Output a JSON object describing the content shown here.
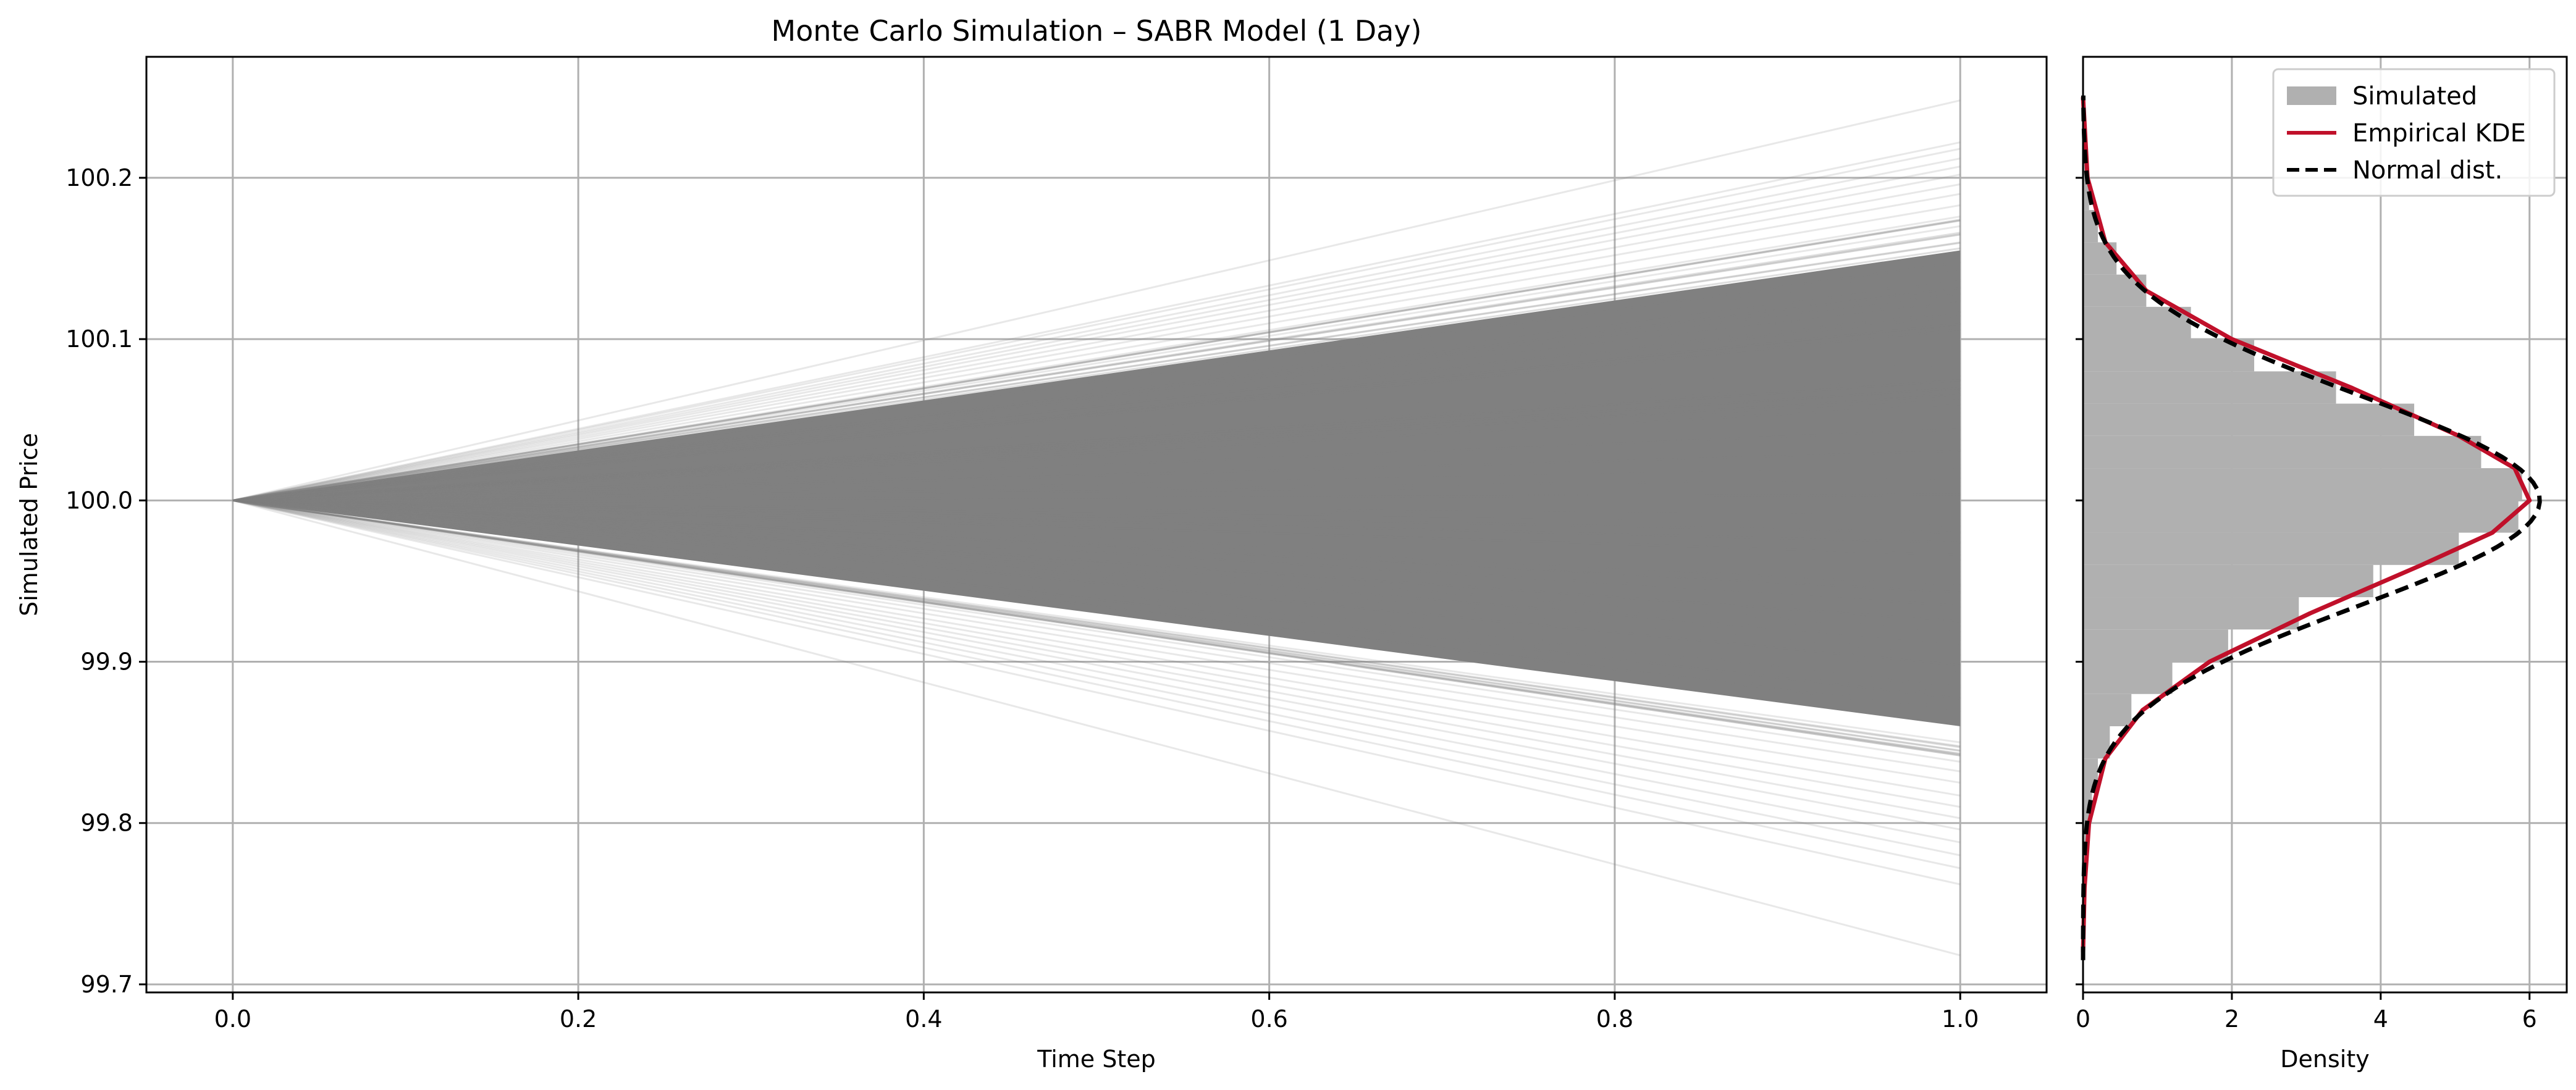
{
  "chart_data": [
    {
      "type": "line",
      "title": "Monte Carlo Simulation – SABR Model (1 Day)",
      "xlabel": "Time Step",
      "ylabel": "Simulated Price",
      "xlim": [
        -0.05,
        1.05
      ],
      "ylim": [
        99.695,
        100.275
      ],
      "xticks": [
        0.0,
        0.2,
        0.4,
        0.6,
        0.8,
        1.0
      ],
      "yticks": [
        99.7,
        99.8,
        99.9,
        100.0,
        100.1,
        100.2
      ],
      "grid": true,
      "line_color": "#808080",
      "start": {
        "x": 0.0,
        "y": 100.0
      },
      "end_x": 1.0,
      "end_values_dense_range": [
        99.86,
        100.155
      ],
      "end_values_outliers": [
        100.248,
        100.222,
        100.218,
        100.212,
        100.207,
        100.202,
        100.196,
        100.19,
        100.183,
        100.176,
        100.17,
        100.165,
        100.16,
        99.85,
        99.845,
        99.838,
        99.832,
        99.825,
        99.817,
        99.81,
        99.803,
        99.796,
        99.788,
        99.78,
        99.772,
        99.762,
        99.718
      ]
    },
    {
      "type": "histogram",
      "orientation": "horizontal",
      "xlabel": "Density",
      "ylabel": "",
      "xlim": [
        0,
        6.5
      ],
      "ylim": [
        99.695,
        100.275
      ],
      "xticks": [
        0,
        2,
        4,
        6
      ],
      "grid": true,
      "legend_position": "top-right",
      "histogram": {
        "name": "Simulated",
        "color": "#b0b0b0",
        "bins": [
          {
            "from": 99.72,
            "to": 99.74,
            "density": 0.01
          },
          {
            "from": 99.74,
            "to": 99.76,
            "density": 0.02
          },
          {
            "from": 99.76,
            "to": 99.78,
            "density": 0.03
          },
          {
            "from": 99.78,
            "to": 99.8,
            "density": 0.06
          },
          {
            "from": 99.8,
            "to": 99.82,
            "density": 0.12
          },
          {
            "from": 99.82,
            "to": 99.84,
            "density": 0.2
          },
          {
            "from": 99.84,
            "to": 99.86,
            "density": 0.36
          },
          {
            "from": 99.86,
            "to": 99.88,
            "density": 0.65
          },
          {
            "from": 99.88,
            "to": 99.9,
            "density": 1.2
          },
          {
            "from": 99.9,
            "to": 99.92,
            "density": 1.95
          },
          {
            "from": 99.92,
            "to": 99.94,
            "density": 2.9
          },
          {
            "from": 99.94,
            "to": 99.96,
            "density": 3.9
          },
          {
            "from": 99.96,
            "to": 99.98,
            "density": 5.05
          },
          {
            "from": 99.98,
            "to": 100.0,
            "density": 5.85
          },
          {
            "from": 100.0,
            "to": 100.02,
            "density": 5.9
          },
          {
            "from": 100.02,
            "to": 100.04,
            "density": 5.35
          },
          {
            "from": 100.04,
            "to": 100.06,
            "density": 4.45
          },
          {
            "from": 100.06,
            "to": 100.08,
            "density": 3.4
          },
          {
            "from": 100.08,
            "to": 100.1,
            "density": 2.3
          },
          {
            "from": 100.1,
            "to": 100.12,
            "density": 1.45
          },
          {
            "from": 100.12,
            "to": 100.14,
            "density": 0.85
          },
          {
            "from": 100.14,
            "to": 100.16,
            "density": 0.45
          },
          {
            "from": 100.16,
            "to": 100.18,
            "density": 0.2
          },
          {
            "from": 100.18,
            "to": 100.2,
            "density": 0.08
          },
          {
            "from": 100.2,
            "to": 100.22,
            "density": 0.03
          },
          {
            "from": 100.22,
            "to": 100.24,
            "density": 0.01
          },
          {
            "from": 100.24,
            "to": 100.26,
            "density": 0.005
          }
        ]
      },
      "series": [
        {
          "name": "Empirical KDE",
          "color": "#c0102a",
          "style": "solid",
          "points": [
            {
              "y": 99.72,
              "x": 0.0
            },
            {
              "y": 99.76,
              "x": 0.02
            },
            {
              "y": 99.8,
              "x": 0.08
            },
            {
              "y": 99.84,
              "x": 0.3
            },
            {
              "y": 99.87,
              "x": 0.8
            },
            {
              "y": 99.9,
              "x": 1.7
            },
            {
              "y": 99.93,
              "x": 3.05
            },
            {
              "y": 99.96,
              "x": 4.55
            },
            {
              "y": 99.98,
              "x": 5.5
            },
            {
              "y": 100.0,
              "x": 6.0
            },
            {
              "y": 100.02,
              "x": 5.8
            },
            {
              "y": 100.04,
              "x": 5.05
            },
            {
              "y": 100.07,
              "x": 3.6
            },
            {
              "y": 100.1,
              "x": 2.0
            },
            {
              "y": 100.13,
              "x": 0.85
            },
            {
              "y": 100.16,
              "x": 0.3
            },
            {
              "y": 100.2,
              "x": 0.06
            },
            {
              "y": 100.25,
              "x": 0.0
            }
          ]
        },
        {
          "name": "Normal dist.",
          "color": "#000000",
          "style": "dashed",
          "distribution": {
            "mean": 100.0,
            "std": 0.065
          }
        }
      ]
    }
  ]
}
